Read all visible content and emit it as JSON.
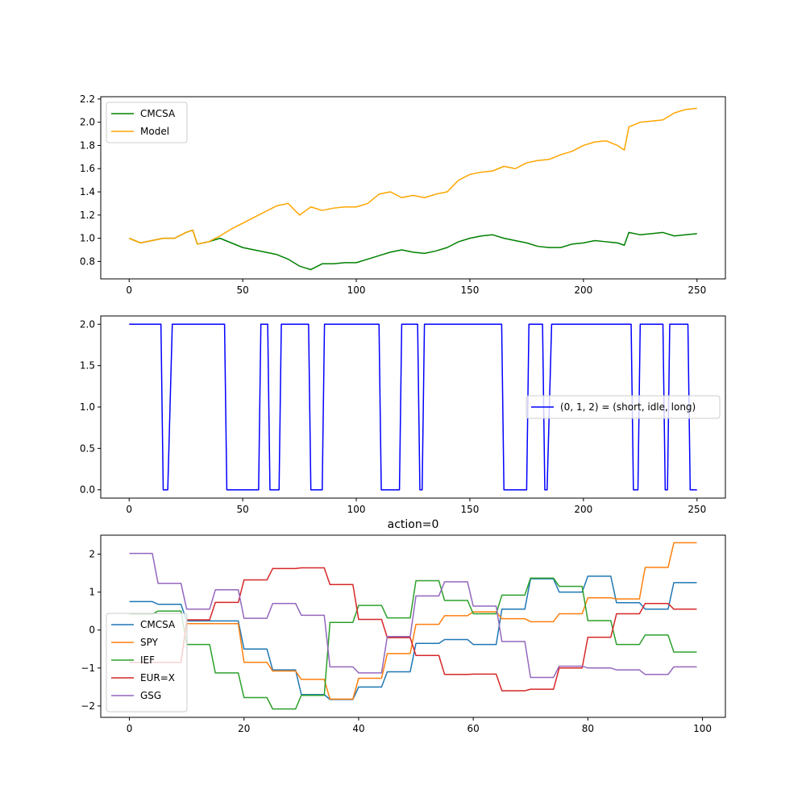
{
  "chart_data": [
    {
      "type": "line",
      "title": "",
      "xlabel": "",
      "ylabel": "",
      "xlim": [
        -12.5,
        262.5
      ],
      "ylim": [
        0.65,
        2.22
      ],
      "xticks": [
        0,
        50,
        100,
        150,
        200,
        250
      ],
      "yticks": [
        0.8,
        1.0,
        1.2,
        1.4,
        1.6,
        1.8,
        2.0,
        2.2
      ],
      "ytick_decimals": 1,
      "grid": false,
      "legend_position": "upper-left",
      "series": [
        {
          "name": "CMCSA",
          "color": "#008000",
          "x": [
            0,
            5,
            10,
            15,
            20,
            25,
            28,
            30,
            35,
            40,
            45,
            50,
            55,
            60,
            65,
            70,
            75,
            80,
            85,
            90,
            95,
            100,
            105,
            110,
            115,
            120,
            125,
            130,
            135,
            140,
            145,
            150,
            155,
            160,
            165,
            170,
            175,
            180,
            185,
            190,
            195,
            200,
            205,
            210,
            215,
            218,
            220,
            225,
            230,
            235,
            240,
            245,
            250
          ],
          "y": [
            1.0,
            0.96,
            0.98,
            1.0,
            1.0,
            1.05,
            1.07,
            0.95,
            0.97,
            1.0,
            0.96,
            0.92,
            0.9,
            0.88,
            0.86,
            0.82,
            0.76,
            0.73,
            0.78,
            0.78,
            0.79,
            0.79,
            0.82,
            0.85,
            0.88,
            0.9,
            0.88,
            0.87,
            0.89,
            0.92,
            0.97,
            1.0,
            1.02,
            1.03,
            1.0,
            0.98,
            0.96,
            0.93,
            0.92,
            0.92,
            0.95,
            0.96,
            0.98,
            0.97,
            0.96,
            0.94,
            1.05,
            1.03,
            1.04,
            1.05,
            1.02,
            1.03,
            1.04
          ]
        },
        {
          "name": "Model",
          "color": "#ffa500",
          "x": [
            0,
            5,
            10,
            15,
            20,
            25,
            28,
            30,
            35,
            40,
            45,
            50,
            55,
            60,
            65,
            70,
            75,
            80,
            85,
            90,
            95,
            100,
            105,
            110,
            115,
            120,
            125,
            130,
            135,
            140,
            145,
            150,
            155,
            160,
            165,
            170,
            175,
            180,
            185,
            190,
            195,
            200,
            205,
            210,
            215,
            218,
            220,
            225,
            230,
            235,
            240,
            245,
            250
          ],
          "y": [
            1.0,
            0.96,
            0.98,
            1.0,
            1.0,
            1.05,
            1.07,
            0.95,
            0.97,
            1.02,
            1.08,
            1.13,
            1.18,
            1.23,
            1.28,
            1.3,
            1.2,
            1.27,
            1.24,
            1.26,
            1.27,
            1.27,
            1.3,
            1.38,
            1.4,
            1.35,
            1.37,
            1.35,
            1.38,
            1.4,
            1.5,
            1.55,
            1.57,
            1.58,
            1.62,
            1.6,
            1.65,
            1.67,
            1.68,
            1.72,
            1.75,
            1.8,
            1.83,
            1.84,
            1.8,
            1.76,
            1.96,
            2.0,
            2.01,
            2.02,
            2.08,
            2.11,
            2.12
          ]
        }
      ]
    },
    {
      "type": "line",
      "title": "",
      "xlabel": "",
      "ylabel": "",
      "xlim": [
        -12.5,
        262.5
      ],
      "ylim": [
        -0.1,
        2.1
      ],
      "xticks": [
        0,
        50,
        100,
        150,
        200,
        250
      ],
      "yticks": [
        0.0,
        0.5,
        1.0,
        1.5,
        2.0
      ],
      "ytick_decimals": 1,
      "grid": false,
      "legend_position": "center-right",
      "series": [
        {
          "name": "(0, 1, 2) = (short, idle, long)",
          "color": "#0000ff",
          "x": [
            0,
            14,
            15,
            17,
            19,
            42,
            43,
            57,
            58,
            61,
            62,
            66,
            67,
            79,
            80,
            85,
            86,
            110,
            111,
            119,
            120,
            127,
            128,
            129,
            130,
            164,
            165,
            175,
            176,
            182,
            183,
            184,
            186,
            221,
            222,
            224,
            225,
            235,
            236,
            237,
            238,
            246,
            247,
            250
          ],
          "y": [
            2,
            2,
            0,
            0,
            2,
            2,
            0,
            0,
            2,
            2,
            0,
            0,
            2,
            2,
            0,
            0,
            2,
            2,
            0,
            0,
            2,
            2,
            0,
            0,
            2,
            2,
            0,
            0,
            2,
            2,
            0,
            0,
            2,
            2,
            0,
            0,
            2,
            2,
            0,
            0,
            2,
            2,
            0,
            0
          ]
        }
      ]
    },
    {
      "type": "line",
      "title": "action=0",
      "xlabel": "",
      "ylabel": "",
      "xlim": [
        -5,
        104
      ],
      "ylim": [
        -2.3,
        2.5
      ],
      "xticks": [
        0,
        20,
        40,
        60,
        80,
        100
      ],
      "yticks": [
        -2,
        -1,
        0,
        1,
        2
      ],
      "ytick_decimals": 0,
      "grid": false,
      "legend_position": "lower-left",
      "series": [
        {
          "name": "CMCSA",
          "color": "#1f77b4",
          "x": [
            0,
            4,
            5,
            9,
            10,
            19,
            20,
            24,
            25,
            29,
            30,
            34,
            35,
            39,
            40,
            44,
            45,
            49,
            50,
            54,
            55,
            59,
            60,
            64,
            65,
            69,
            70,
            74,
            75,
            79,
            80,
            84,
            85,
            89,
            90,
            94,
            95,
            99
          ],
          "y": [
            0.75,
            0.75,
            0.68,
            0.68,
            0.24,
            0.24,
            -0.5,
            -0.5,
            -1.05,
            -1.05,
            -1.7,
            -1.7,
            -1.83,
            -1.83,
            -1.5,
            -1.5,
            -1.1,
            -1.1,
            -0.35,
            -0.35,
            -0.25,
            -0.25,
            -0.38,
            -0.38,
            0.55,
            0.55,
            1.35,
            1.35,
            1.0,
            1.0,
            1.42,
            1.42,
            0.72,
            0.72,
            0.55,
            0.55,
            1.25,
            1.25
          ]
        },
        {
          "name": "SPY",
          "color": "#ff7f0e",
          "x": [
            0,
            4,
            5,
            9,
            10,
            19,
            20,
            24,
            25,
            29,
            30,
            34,
            35,
            39,
            40,
            44,
            45,
            49,
            50,
            54,
            55,
            59,
            60,
            64,
            65,
            69,
            70,
            74,
            75,
            79,
            80,
            84,
            85,
            89,
            90,
            94,
            95,
            99
          ],
          "y": [
            -0.85,
            -0.85,
            -0.85,
            -0.85,
            0.17,
            0.17,
            -0.85,
            -0.85,
            -1.08,
            -1.08,
            -1.3,
            -1.3,
            -1.82,
            -1.82,
            -1.27,
            -1.27,
            -0.62,
            -0.62,
            0.15,
            0.15,
            0.38,
            0.38,
            0.48,
            0.48,
            0.3,
            0.3,
            0.22,
            0.22,
            0.43,
            0.43,
            0.85,
            0.85,
            0.82,
            0.82,
            1.65,
            1.65,
            2.3,
            2.3
          ]
        },
        {
          "name": "IEF",
          "color": "#2ca02c",
          "x": [
            0,
            4,
            5,
            9,
            10,
            14,
            15,
            19,
            20,
            24,
            25,
            29,
            30,
            34,
            35,
            39,
            40,
            44,
            45,
            49,
            50,
            54,
            55,
            59,
            60,
            64,
            65,
            69,
            70,
            74,
            75,
            79,
            80,
            84,
            85,
            89,
            90,
            94,
            95,
            99
          ],
          "y": [
            0.42,
            0.42,
            0.5,
            0.5,
            -0.38,
            -0.38,
            -1.13,
            -1.13,
            -1.78,
            -1.78,
            -2.08,
            -2.08,
            -1.72,
            -1.72,
            0.2,
            0.2,
            0.65,
            0.65,
            0.32,
            0.32,
            1.3,
            1.3,
            0.78,
            0.78,
            0.43,
            0.43,
            0.92,
            0.92,
            1.37,
            1.37,
            1.15,
            1.15,
            0.25,
            0.25,
            -0.38,
            -0.38,
            -0.13,
            -0.13,
            -0.58,
            -0.58
          ]
        },
        {
          "name": "EUR=X",
          "color": "#d62728",
          "x": [
            0,
            9,
            10,
            14,
            15,
            19,
            20,
            24,
            25,
            29,
            30,
            34,
            35,
            39,
            40,
            44,
            45,
            49,
            50,
            54,
            55,
            59,
            60,
            64,
            65,
            69,
            70,
            74,
            75,
            79,
            80,
            84,
            85,
            89,
            90,
            94,
            95,
            99
          ],
          "y": [
            -0.85,
            -0.85,
            0.27,
            0.27,
            0.73,
            0.73,
            1.32,
            1.32,
            1.62,
            1.62,
            1.64,
            1.64,
            1.2,
            1.2,
            0.28,
            0.28,
            -0.2,
            -0.2,
            -0.67,
            -0.67,
            -1.17,
            -1.17,
            -1.16,
            -1.16,
            -1.6,
            -1.6,
            -1.56,
            -1.56,
            -1.0,
            -1.0,
            -0.19,
            -0.19,
            0.43,
            0.43,
            0.7,
            0.7,
            0.55,
            0.55
          ]
        },
        {
          "name": "GSG",
          "color": "#9467bd",
          "x": [
            0,
            4,
            5,
            9,
            10,
            14,
            15,
            19,
            20,
            24,
            25,
            29,
            30,
            34,
            35,
            39,
            40,
            44,
            45,
            49,
            50,
            54,
            55,
            59,
            60,
            64,
            65,
            69,
            70,
            74,
            75,
            79,
            80,
            84,
            85,
            89,
            90,
            94,
            95,
            99
          ],
          "y": [
            2.02,
            2.02,
            1.23,
            1.23,
            0.55,
            0.55,
            1.06,
            1.06,
            0.31,
            0.31,
            0.7,
            0.7,
            0.39,
            0.39,
            -0.97,
            -0.97,
            -1.13,
            -1.13,
            -0.17,
            -0.17,
            0.9,
            0.9,
            1.27,
            1.27,
            0.63,
            0.63,
            -0.3,
            -0.3,
            -1.25,
            -1.25,
            -0.95,
            -0.95,
            -1.0,
            -1.0,
            -1.05,
            -1.05,
            -1.17,
            -1.17,
            -0.97,
            -0.97
          ]
        }
      ]
    }
  ]
}
